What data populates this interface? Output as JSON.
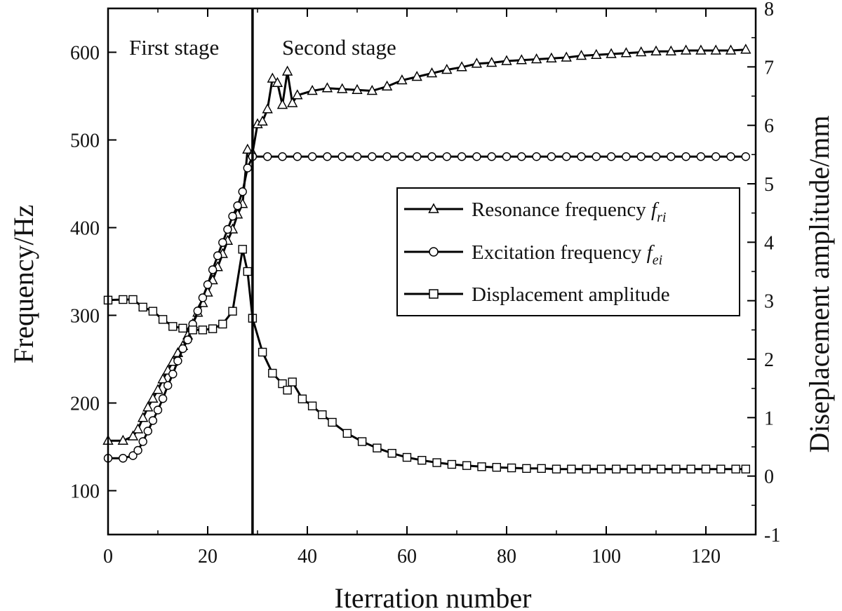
{
  "chart_data": {
    "type": "line",
    "xlabel": "Iterration number",
    "ylabel_left": "Frequency/Hz",
    "ylabel_right": "Diseplacement amplitude/mm",
    "xlim": [
      0,
      130
    ],
    "xticks": [
      0,
      20,
      40,
      60,
      80,
      100,
      120
    ],
    "ylim_left": [
      50,
      650
    ],
    "yticks_left": [
      100,
      200,
      300,
      400,
      500,
      600
    ],
    "ylim_right": [
      -1,
      8
    ],
    "yticks_right": [
      -1,
      0,
      1,
      2,
      3,
      4,
      5,
      6,
      7,
      8
    ],
    "stage_divider_x": 29,
    "annotations": {
      "first_stage": "First stage",
      "second_stage": "Second stage"
    },
    "legend": {
      "position": "center-right",
      "items": [
        {
          "series": 0,
          "main": "Resonance frequency ",
          "sym": "f",
          "sub": "ri"
        },
        {
          "series": 1,
          "main": "Excitation frequency ",
          "sym": "f",
          "sub": "ei"
        },
        {
          "series": 2,
          "main": "Displacement amplitude",
          "sym": "",
          "sub": ""
        }
      ]
    },
    "series": [
      {
        "marker": "triangle",
        "axis": "left",
        "x": [
          0,
          3,
          5,
          6,
          7,
          8,
          9,
          10,
          11,
          12,
          13,
          14,
          15,
          16,
          17,
          18,
          19,
          20,
          21,
          22,
          23,
          24,
          25,
          26,
          27,
          28,
          29,
          30,
          31,
          32,
          33,
          34,
          35,
          36,
          37,
          38,
          41,
          44,
          47,
          50,
          53,
          56,
          59,
          62,
          65,
          68,
          71,
          74,
          77,
          80,
          83,
          86,
          89,
          92,
          95,
          98,
          101,
          104,
          107,
          110,
          113,
          116,
          119,
          122,
          125,
          128
        ],
        "y": [
          157,
          157,
          162,
          170,
          183,
          195,
          205,
          215,
          227,
          237,
          247,
          257,
          265,
          277,
          290,
          303,
          314,
          326,
          340,
          355,
          370,
          385,
          398,
          415,
          427,
          489,
          485,
          518,
          521,
          535,
          570,
          565,
          540,
          578,
          542,
          551,
          556,
          559,
          558,
          557,
          556,
          561,
          568,
          572,
          576,
          580,
          583,
          587,
          588,
          590,
          591,
          592,
          593,
          594,
          596,
          597,
          598,
          599,
          600,
          601,
          601,
          602,
          602,
          602,
          602,
          603
        ]
      },
      {
        "marker": "circle",
        "axis": "left",
        "x": [
          0,
          3,
          5,
          6,
          7,
          8,
          9,
          10,
          11,
          12,
          13,
          14,
          15,
          16,
          17,
          18,
          19,
          20,
          21,
          22,
          23,
          24,
          25,
          26,
          27,
          28,
          29,
          32,
          35,
          38,
          41,
          44,
          47,
          50,
          53,
          56,
          59,
          62,
          65,
          68,
          71,
          74,
          77,
          80,
          83,
          86,
          89,
          92,
          95,
          98,
          101,
          104,
          107,
          110,
          113,
          116,
          119,
          122,
          125,
          128
        ],
        "y": [
          137,
          137,
          140,
          146,
          156,
          168,
          180,
          192,
          205,
          220,
          233,
          248,
          262,
          272,
          290,
          305,
          320,
          335,
          352,
          368,
          383,
          398,
          413,
          425,
          441,
          468,
          481,
          481,
          481,
          481,
          481,
          481,
          481,
          481,
          481,
          481,
          481,
          481,
          481,
          481,
          481,
          481,
          481,
          481,
          481,
          481,
          481,
          481,
          481,
          481,
          481,
          481,
          481,
          481,
          481,
          481,
          481,
          481,
          481,
          481
        ]
      },
      {
        "marker": "square",
        "axis": "right",
        "x": [
          0,
          3,
          5,
          7,
          9,
          11,
          13,
          15,
          17,
          19,
          21,
          23,
          25,
          27,
          28,
          29,
          31,
          33,
          35,
          36,
          37,
          39,
          41,
          43,
          45,
          48,
          51,
          54,
          57,
          60,
          63,
          66,
          69,
          72,
          75,
          78,
          81,
          84,
          87,
          90,
          93,
          96,
          99,
          102,
          105,
          108,
          111,
          114,
          117,
          120,
          123,
          126,
          128
        ],
        "y": [
          3.01,
          3.02,
          3.02,
          2.89,
          2.82,
          2.68,
          2.56,
          2.53,
          2.5,
          2.5,
          2.52,
          2.6,
          2.82,
          3.88,
          3.5,
          2.7,
          2.12,
          1.76,
          1.58,
          1.47,
          1.61,
          1.32,
          1.2,
          1.05,
          0.92,
          0.73,
          0.59,
          0.48,
          0.39,
          0.32,
          0.27,
          0.23,
          0.2,
          0.18,
          0.16,
          0.15,
          0.14,
          0.13,
          0.13,
          0.12,
          0.12,
          0.12,
          0.12,
          0.12,
          0.12,
          0.12,
          0.12,
          0.12,
          0.12,
          0.12,
          0.12,
          0.12,
          0.12
        ]
      }
    ]
  }
}
